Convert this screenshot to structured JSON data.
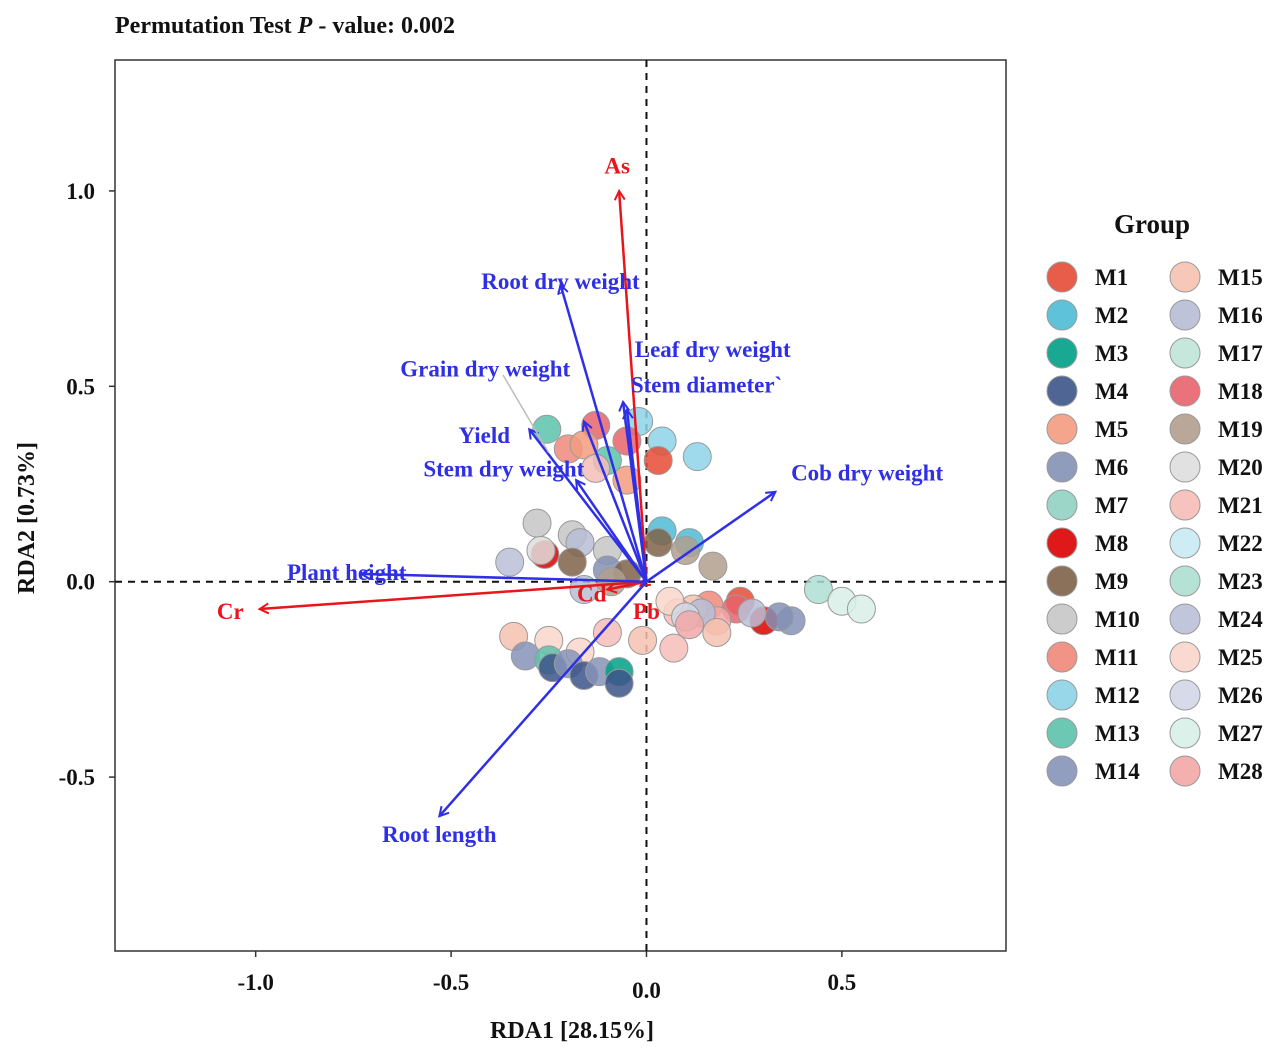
{
  "chart_data": {
    "type": "scatter",
    "title_prefix": "Permutation Test ",
    "title_italic": "P",
    "title_suffix": " - value: 0.002",
    "xlabel": "RDA1 [28.15%]",
    "ylabel": "RDA2 [0.73%]",
    "xlim": [
      -1.36,
      0.92
    ],
    "ylim": [
      -0.945,
      1.335
    ],
    "xticks": [
      {
        "v": -1.0,
        "label": "-1.0"
      },
      {
        "v": -0.5,
        "label": "-0.5"
      },
      {
        "v": 0.0,
        "label": "0.0"
      },
      {
        "v": 0.5,
        "label": "0.5"
      }
    ],
    "yticks": [
      {
        "v": 1.0,
        "label": "1.0"
      },
      {
        "v": 0.5,
        "label": "0.5"
      },
      {
        "v": 0.0,
        "label": "0.0"
      },
      {
        "v": -0.5,
        "label": "-0.5"
      }
    ],
    "legend_title": "Group",
    "legend_position": "right",
    "groups": [
      {
        "name": "M1",
        "color": "#e64b35"
      },
      {
        "name": "M2",
        "color": "#4dbbd5"
      },
      {
        "name": "M3",
        "color": "#00a087"
      },
      {
        "name": "M4",
        "color": "#3c5488"
      },
      {
        "name": "M5",
        "color": "#f39b7f"
      },
      {
        "name": "M6",
        "color": "#8491b4"
      },
      {
        "name": "M7",
        "color": "#91d1c2"
      },
      {
        "name": "M8",
        "color": "#dc0000"
      },
      {
        "name": "M9",
        "color": "#7e6148"
      },
      {
        "name": "M10",
        "color": "#c6c6c6"
      },
      {
        "name": "M11",
        "color": "#f0887a"
      },
      {
        "name": "M12",
        "color": "#8dd3e8"
      },
      {
        "name": "M13",
        "color": "#5cc2aa"
      },
      {
        "name": "M14",
        "color": "#8693b8"
      },
      {
        "name": "M15",
        "color": "#f6c2b0"
      },
      {
        "name": "M16",
        "color": "#b7bdd6"
      },
      {
        "name": "M17",
        "color": "#bfe4d8"
      },
      {
        "name": "M18",
        "color": "#e8636b"
      },
      {
        "name": "M19",
        "color": "#b19f8e"
      },
      {
        "name": "M20",
        "color": "#dedede"
      },
      {
        "name": "M21",
        "color": "#f5bdb8"
      },
      {
        "name": "M22",
        "color": "#c8eaf3"
      },
      {
        "name": "M23",
        "color": "#aedfd2"
      },
      {
        "name": "M24",
        "color": "#bac0d8"
      },
      {
        "name": "M25",
        "color": "#f9d6cb"
      },
      {
        "name": "M26",
        "color": "#d3d7e7"
      },
      {
        "name": "M27",
        "color": "#d8f0e8"
      },
      {
        "name": "M28",
        "color": "#f2a7a6"
      }
    ],
    "points": [
      {
        "g": "M13",
        "x": -0.255,
        "y": 0.39
      },
      {
        "g": "M18",
        "x": -0.13,
        "y": 0.4
      },
      {
        "g": "M12",
        "x": -0.02,
        "y": 0.41
      },
      {
        "g": "M11",
        "x": -0.2,
        "y": 0.34
      },
      {
        "g": "M5",
        "x": -0.16,
        "y": 0.35
      },
      {
        "g": "M18",
        "x": -0.05,
        "y": 0.36
      },
      {
        "g": "M12",
        "x": 0.04,
        "y": 0.36
      },
      {
        "g": "M12",
        "x": 0.13,
        "y": 0.32
      },
      {
        "g": "M1",
        "x": 0.03,
        "y": 0.31
      },
      {
        "g": "M13",
        "x": -0.1,
        "y": 0.31
      },
      {
        "g": "M21",
        "x": -0.13,
        "y": 0.29
      },
      {
        "g": "M5",
        "x": -0.05,
        "y": 0.26
      },
      {
        "g": "M10",
        "x": -0.28,
        "y": 0.15
      },
      {
        "g": "M10",
        "x": -0.19,
        "y": 0.12
      },
      {
        "g": "M16",
        "x": -0.17,
        "y": 0.1
      },
      {
        "g": "M10",
        "x": -0.1,
        "y": 0.08
      },
      {
        "g": "M2",
        "x": 0.04,
        "y": 0.13
      },
      {
        "g": "M2",
        "x": 0.11,
        "y": 0.1
      },
      {
        "g": "M9",
        "x": 0.03,
        "y": 0.1
      },
      {
        "g": "M19",
        "x": 0.1,
        "y": 0.08
      },
      {
        "g": "M19",
        "x": 0.17,
        "y": 0.04
      },
      {
        "g": "M24",
        "x": -0.35,
        "y": 0.05
      },
      {
        "g": "M8",
        "x": -0.26,
        "y": 0.07
      },
      {
        "g": "M9",
        "x": -0.19,
        "y": 0.05
      },
      {
        "g": "M6",
        "x": -0.1,
        "y": 0.03
      },
      {
        "g": "M9",
        "x": -0.05,
        "y": 0.02
      },
      {
        "g": "M19",
        "x": -0.09,
        "y": 0.0
      },
      {
        "g": "M20",
        "x": -0.27,
        "y": 0.08
      },
      {
        "g": "M16",
        "x": -0.16,
        "y": -0.02
      },
      {
        "g": "M23",
        "x": 0.44,
        "y": -0.02
      },
      {
        "g": "M27",
        "x": 0.5,
        "y": -0.05
      },
      {
        "g": "M27",
        "x": 0.55,
        "y": -0.07
      },
      {
        "g": "M11",
        "x": 0.16,
        "y": -0.06
      },
      {
        "g": "M1",
        "x": 0.24,
        "y": -0.05
      },
      {
        "g": "M8",
        "x": 0.3,
        "y": -0.1
      },
      {
        "g": "M14",
        "x": 0.37,
        "y": -0.1
      },
      {
        "g": "M6",
        "x": 0.34,
        "y": -0.09
      },
      {
        "g": "M18",
        "x": 0.23,
        "y": -0.07
      },
      {
        "g": "M28",
        "x": 0.18,
        "y": -0.1
      },
      {
        "g": "M24",
        "x": 0.27,
        "y": -0.08
      },
      {
        "g": "M15",
        "x": 0.12,
        "y": -0.07
      },
      {
        "g": "M21",
        "x": 0.08,
        "y": -0.08
      },
      {
        "g": "M16",
        "x": 0.14,
        "y": -0.08
      },
      {
        "g": "M25",
        "x": 0.06,
        "y": -0.05
      },
      {
        "g": "M26",
        "x": 0.1,
        "y": -0.09
      },
      {
        "g": "M15",
        "x": -0.34,
        "y": -0.14
      },
      {
        "g": "M25",
        "x": -0.25,
        "y": -0.15
      },
      {
        "g": "M21",
        "x": -0.1,
        "y": -0.13
      },
      {
        "g": "M15",
        "x": -0.01,
        "y": -0.15
      },
      {
        "g": "M21",
        "x": 0.07,
        "y": -0.17
      },
      {
        "g": "M15",
        "x": 0.18,
        "y": -0.13
      },
      {
        "g": "M28",
        "x": 0.11,
        "y": -0.11
      },
      {
        "g": "M25",
        "x": -0.17,
        "y": -0.18
      },
      {
        "g": "M14",
        "x": -0.31,
        "y": -0.19
      },
      {
        "g": "M13",
        "x": -0.25,
        "y": -0.2
      },
      {
        "g": "M4",
        "x": -0.24,
        "y": -0.22
      },
      {
        "g": "M14",
        "x": -0.2,
        "y": -0.21
      },
      {
        "g": "M4",
        "x": -0.16,
        "y": -0.24
      },
      {
        "g": "M14",
        "x": -0.12,
        "y": -0.23
      },
      {
        "g": "M3",
        "x": -0.07,
        "y": -0.23
      },
      {
        "g": "M4",
        "x": -0.07,
        "y": -0.26
      }
    ],
    "vectors": [
      {
        "name": "As",
        "type": "environmental",
        "x": -0.07,
        "y": 1.0,
        "lx": -0.075,
        "ly": 1.065
      },
      {
        "name": "Cr",
        "type": "environmental",
        "x": -0.99,
        "y": -0.07,
        "lx": -1.065,
        "ly": -0.075
      },
      {
        "name": "Cd",
        "type": "environmental",
        "x": -0.1,
        "y": -0.02,
        "lx": -0.14,
        "ly": -0.03
      },
      {
        "name": "Pb",
        "type": "environmental",
        "x": -0.015,
        "y": -0.01,
        "lx": 0.0,
        "ly": -0.075
      },
      {
        "name": "Root dry weight",
        "type": "response",
        "x": -0.22,
        "y": 0.76,
        "lx": -0.22,
        "ly": 0.77
      },
      {
        "name": "Leaf dry weight",
        "type": "response",
        "x": -0.05,
        "y": 0.44,
        "lx": -0.03,
        "ly": 0.595
      },
      {
        "name": "Stem diameter`",
        "type": "response",
        "x": -0.06,
        "y": 0.46,
        "lx": -0.04,
        "ly": 0.505
      },
      {
        "name": "Grain dry weight",
        "type": "response",
        "x": -0.16,
        "y": 0.41,
        "lx": -0.63,
        "ly": 0.545
      },
      {
        "name": "Yield",
        "type": "response",
        "x": -0.3,
        "y": 0.39,
        "lx": -0.415,
        "ly": 0.375
      },
      {
        "name": "Stem dry weight",
        "type": "response",
        "x": -0.18,
        "y": 0.26,
        "lx": -0.365,
        "ly": 0.29
      },
      {
        "name": "Cob dry weight",
        "type": "response",
        "x": 0.33,
        "y": 0.23,
        "lx": 0.37,
        "ly": 0.28
      },
      {
        "name": "Plant height",
        "type": "response",
        "x": -0.73,
        "y": 0.02,
        "lx": -0.92,
        "ly": 0.025
      },
      {
        "name": "Root length",
        "type": "response",
        "x": -0.53,
        "y": -0.6,
        "lx": -0.53,
        "ly": -0.645
      }
    ],
    "env_color": "#e8161c",
    "resp_color": "#2f2fe6"
  }
}
